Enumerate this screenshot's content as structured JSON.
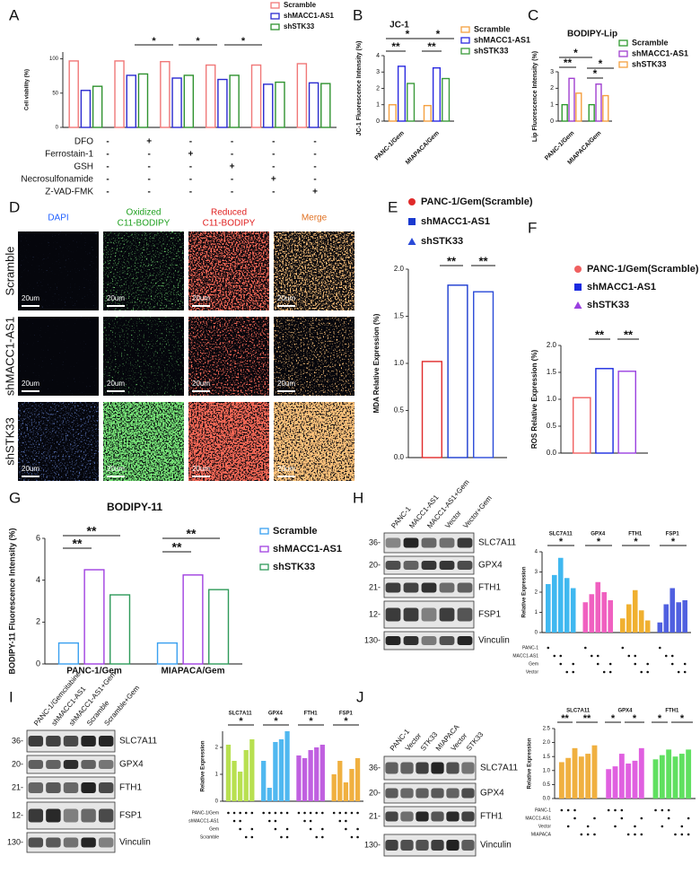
{
  "panel_labels": [
    "A",
    "B",
    "C",
    "D",
    "E",
    "F",
    "G",
    "H",
    "I",
    "J"
  ],
  "images": {
    "columns": [
      [
        "DAPI"
      ],
      [
        "Oxidized",
        "C11-BODIPY"
      ],
      [
        "Reduced",
        "C11-BODIPY"
      ],
      [
        "Merge"
      ]
    ],
    "rows": [
      "Scramble",
      "shMACC1-AS1",
      "shSTK33"
    ],
    "scale_bar": "20um"
  },
  "blots": {
    "H": {
      "lanes": [
        "PANC-1",
        "MACC1-AS1",
        "MACC1-AS1+Gem",
        "Vector",
        "Vector+Gem"
      ],
      "proteins": [
        "SLC7A11",
        "GPX4",
        "FTH1",
        "FSP1",
        "Vinculin"
      ],
      "markers": [
        "36-",
        "20-",
        "21-",
        "12-",
        "130-"
      ]
    },
    "I": {
      "lanes": [
        "PANC-1/Gemcitabine",
        "shMACC1-AS1",
        "shMACC1-AS1+Gem",
        "Scramble",
        "Scramble+Gem"
      ],
      "proteins": [
        "SLC7A11",
        "GPX4",
        "FTH1",
        "FSP1",
        "Vinculin"
      ],
      "markers": [
        "36-",
        "20-",
        "21-",
        "12-",
        "130-"
      ]
    },
    "J": {
      "lanes": [
        "PANC-1",
        "Vector",
        "STK33",
        "MIAPACA",
        "Vector",
        "STK33"
      ],
      "proteins": [
        "SLC7A11",
        "GPX4",
        "FTH1",
        "Vinculin"
      ],
      "markers": [
        "36-",
        "20-",
        "21-",
        "130-"
      ]
    }
  },
  "chart_data": [
    {
      "type": "bar",
      "y_label": "Cell viability (%)",
      "categories": [
        null,
        null,
        null,
        null,
        null,
        null
      ],
      "series": [
        {
          "name": "Scramble",
          "color": "#f07878",
          "values": [
            97,
            97,
            96,
            91,
            91,
            93
          ]
        },
        {
          "name": "shMACC1-AS1",
          "color": "#2a2ad0",
          "values": [
            54,
            76,
            72,
            70,
            63,
            65
          ]
        },
        {
          "name": "shSTK33",
          "color": "#2f922f",
          "values": [
            60,
            78,
            76,
            76,
            66,
            64
          ]
        }
      ],
      "ylim": [
        0,
        110
      ],
      "yticks": [
        0,
        50,
        100
      ],
      "annotations": [
        "*",
        "*",
        "*"
      ],
      "treatments": [
        {
          "label": "DFO",
          "signs": [
            "-",
            "+",
            "-",
            "-",
            "-",
            "-"
          ]
        },
        {
          "label": "Ferrostain-1",
          "signs": [
            "-",
            "-",
            "+",
            "-",
            "-",
            "-"
          ]
        },
        {
          "label": "GSH",
          "signs": [
            "-",
            "-",
            "-",
            "+",
            "-",
            "-"
          ]
        },
        {
          "label": "Necrosulfonamide",
          "signs": [
            "-",
            "-",
            "-",
            "-",
            "+",
            "-"
          ]
        },
        {
          "label": "Z-VAD-FMK",
          "signs": [
            "-",
            "-",
            "-",
            "-",
            "-",
            "+"
          ]
        }
      ]
    },
    {
      "type": "bar",
      "title": "JC-1",
      "y_label": "JC-1 Fluorescence Intensity (%)",
      "categories": [
        "PANC-1/Gem",
        "MIAPACA/Gem"
      ],
      "series": [
        {
          "name": "Scramble",
          "color": "#f5a040",
          "values": [
            1.0,
            0.95
          ]
        },
        {
          "name": "shMACC1-AS1",
          "color": "#2a2ae0",
          "values": [
            3.35,
            3.25
          ]
        },
        {
          "name": "shSTK33",
          "color": "#3a9a3a",
          "values": [
            2.3,
            2.6
          ]
        }
      ],
      "ylim": [
        0,
        4
      ],
      "yticks": [
        0,
        1,
        2,
        3,
        4
      ],
      "annotations": [
        "*",
        "**",
        "**",
        "*"
      ]
    },
    {
      "type": "bar",
      "title": "BODIPY-Lip",
      "y_label": "Lip Fluorescence Intensity (%)",
      "categories": [
        "PANC-1/Gem",
        "MIAPACA/Gem"
      ],
      "series": [
        {
          "name": "Scramble",
          "color": "#2f9a2f",
          "values": [
            1.0,
            1.0
          ]
        },
        {
          "name": "shMACC1-AS1",
          "color": "#a040d0",
          "values": [
            2.6,
            2.25
          ]
        },
        {
          "name": "shSTK33",
          "color": "#f5a040",
          "values": [
            1.7,
            1.55
          ]
        }
      ],
      "ylim": [
        0,
        3
      ],
      "yticks": [
        0,
        1,
        2,
        3
      ],
      "annotations": [
        "*",
        "**",
        "*",
        "*"
      ]
    },
    {
      "type": "bar",
      "y_label": "MDA Relative Expression (%)",
      "categories": [
        null
      ],
      "series": [
        {
          "name": "PANC-1/Gem(Scramble)",
          "color": "#e02a2a",
          "values": [
            1.02
          ]
        },
        {
          "name": "shMACC1-AS1",
          "color": "#1a3ad0",
          "values": [
            1.83
          ]
        },
        {
          "name": "shSTK33",
          "color": "#2a4ad8",
          "values": [
            1.76
          ]
        }
      ],
      "ylim": [
        0,
        2
      ],
      "yticks": [
        {
          "value": 0,
          "label": "0.0"
        },
        {
          "value": 0.5,
          "label": "0.5"
        },
        {
          "value": 1,
          "label": "1.0"
        },
        {
          "value": 1.5,
          "label": "1.5"
        },
        {
          "value": 2,
          "label": "2.0"
        }
      ],
      "annotations": [
        "**",
        "**"
      ]
    },
    {
      "type": "bar",
      "y_label": "ROS Relative Expression (%)",
      "categories": [
        null
      ],
      "series": [
        {
          "name": "PANC-1/Gem(Scramble)",
          "color": "#f06060",
          "values": [
            1.03
          ]
        },
        {
          "name": "shMACC1-AS1",
          "color": "#1a2ae0",
          "values": [
            1.57
          ]
        },
        {
          "name": "shSTK33",
          "color": "#9a40e0",
          "values": [
            1.52
          ]
        }
      ],
      "ylim": [
        0,
        2
      ],
      "yticks": [
        {
          "value": 0,
          "label": "0.0"
        },
        {
          "value": 0.5,
          "label": "0.5"
        },
        {
          "value": 1,
          "label": "1.0"
        },
        {
          "value": 1.5,
          "label": "1.5"
        },
        {
          "value": 2,
          "label": "2.0"
        }
      ],
      "annotations": [
        "**",
        "**"
      ]
    },
    {
      "type": "bar",
      "title": "BODIPY-11",
      "y_label": "BODIPY-11 Fluorescence Intensity (%)",
      "categories": [
        "PANC-1/Gem",
        "MIAPACA/Gem"
      ],
      "series": [
        {
          "name": "Scramble",
          "color": "#3aa0f0",
          "values": [
            1.0,
            1.0
          ]
        },
        {
          "name": "shMACC1-AS1",
          "color": "#a040e0",
          "values": [
            4.5,
            4.25
          ]
        },
        {
          "name": "shSTK33",
          "color": "#2f9a5a",
          "values": [
            3.3,
            3.55
          ]
        }
      ],
      "ylim": [
        0,
        6
      ],
      "yticks": [
        0,
        2,
        4,
        6
      ],
      "annotations": [
        "**",
        "**",
        "**",
        "**"
      ]
    },
    {
      "type": "bar",
      "y_label": "Relative Expression",
      "series": [
        {
          "name": "SLC7A11",
          "color": "#40b8f0",
          "values": [
            2.4,
            2.85,
            3.7,
            2.7,
            2.2
          ]
        },
        {
          "name": "GPX4",
          "color": "#f060c0",
          "values": [
            1.5,
            1.9,
            2.5,
            2.0,
            1.6
          ]
        },
        {
          "name": "FTH1",
          "color": "#f0b030",
          "values": [
            0.7,
            1.4,
            2.1,
            1.1,
            0.6
          ]
        },
        {
          "name": "FSP1",
          "color": "#5060e0",
          "values": [
            0.5,
            1.4,
            2.2,
            1.5,
            1.6
          ]
        }
      ],
      "ylim": [
        0,
        4
      ],
      "yticks": [
        0,
        1,
        2,
        3,
        4
      ],
      "annotations": [
        "*",
        "*",
        "*",
        "*"
      ],
      "conditions": [
        {
          "label": "PANC-1",
          "dots": [
            1,
            0,
            0,
            0,
            0
          ]
        },
        {
          "label": "MACC1-AS1",
          "dots": [
            0,
            1,
            1,
            0,
            0
          ]
        },
        {
          "label": "Gem",
          "dots": [
            0,
            0,
            1,
            0,
            1
          ]
        },
        {
          "label": "Vector",
          "dots": [
            0,
            0,
            0,
            1,
            1
          ]
        }
      ]
    },
    {
      "type": "bar",
      "y_label": "Relative Expression",
      "series": [
        {
          "name": "SLC7A11",
          "color": "#b8e050",
          "values": [
            2.1,
            1.5,
            1.1,
            1.9,
            2.3
          ]
        },
        {
          "name": "GPX4",
          "color": "#50b8f0",
          "values": [
            1.5,
            0.5,
            2.2,
            2.3,
            2.6
          ]
        },
        {
          "name": "FTH1",
          "color": "#c060e0",
          "values": [
            1.7,
            1.6,
            1.9,
            2.0,
            2.1
          ]
        },
        {
          "name": "FSP1",
          "color": "#f0b040",
          "values": [
            1.0,
            1.5,
            0.7,
            1.2,
            1.6
          ]
        }
      ],
      "ylim": [
        0,
        2.6
      ],
      "yticks": [
        0,
        1,
        2
      ],
      "annotations": [
        "*",
        "*",
        "*",
        "*"
      ],
      "conditions": [
        {
          "label": "PANC-1/Gem",
          "dots": [
            1,
            1,
            1,
            1,
            1
          ]
        },
        {
          "label": "shMACC1-AS1",
          "dots": [
            0,
            1,
            1,
            0,
            0
          ]
        },
        {
          "label": "Gem",
          "dots": [
            0,
            0,
            1,
            0,
            1
          ]
        },
        {
          "label": "Scramble",
          "dots": [
            0,
            0,
            0,
            1,
            1
          ]
        }
      ]
    },
    {
      "type": "bar",
      "y_label": "Relative Expression",
      "series": [
        {
          "name": "SLC7A11",
          "color": "#f0b040",
          "values": [
            1.3,
            1.45,
            1.8,
            1.5,
            1.6,
            1.9
          ]
        },
        {
          "name": "GPX4",
          "color": "#e060e0",
          "values": [
            1.05,
            1.15,
            1.6,
            1.25,
            1.35,
            1.8
          ]
        },
        {
          "name": "FTH1",
          "color": "#60e060",
          "values": [
            1.4,
            1.55,
            1.75,
            1.5,
            1.6,
            1.75
          ]
        }
      ],
      "ylim": [
        0,
        2.5
      ],
      "yticks": [
        {
          "value": 0,
          "label": "0.0"
        },
        {
          "value": 0.5,
          "label": "0.5"
        },
        {
          "value": 1,
          "label": "1.0"
        },
        {
          "value": 1.5,
          "label": "1.5"
        },
        {
          "value": 2,
          "label": "2.0"
        },
        {
          "value": 2.5,
          "label": "2.5"
        }
      ],
      "annotations": [
        "**",
        "**",
        "*",
        "*",
        "*",
        "*"
      ],
      "conditions": [
        {
          "label": "PANC-1",
          "dots": [
            1,
            1,
            1,
            0,
            0,
            0
          ]
        },
        {
          "label": "MACC1-AS1",
          "dots": [
            0,
            0,
            1,
            0,
            0,
            1
          ]
        },
        {
          "label": "Vector",
          "dots": [
            0,
            1,
            0,
            0,
            1,
            0
          ]
        },
        {
          "label": "MIAPACA",
          "dots": [
            0,
            0,
            0,
            1,
            1,
            1
          ]
        }
      ]
    }
  ]
}
